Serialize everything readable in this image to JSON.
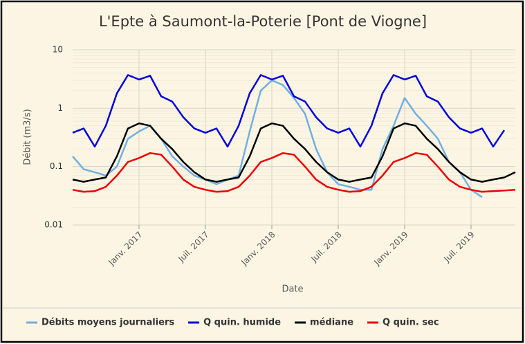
{
  "chart_data": {
    "type": "line",
    "title": "L'Epte à Saumont-la-Poterie [Pont de Viogne]",
    "x_label": "Date",
    "y_label": "Débit (m3/s)",
    "y_scale": "log",
    "grid": true,
    "legend": "bottom",
    "xlim": [
      "2016-07",
      "2019-11"
    ],
    "ylim": [
      0.01,
      10
    ],
    "yticks": [
      0.01,
      0.1,
      1,
      10
    ],
    "xticks": [
      {
        "value": "2017-01",
        "label": "Janv. 2017"
      },
      {
        "value": "2017-07",
        "label": "Juil. 2017"
      },
      {
        "value": "2018-01",
        "label": "Janv. 2018"
      },
      {
        "value": "2018-07",
        "label": "Juil. 2018"
      },
      {
        "value": "2019-01",
        "label": "Janv. 2019"
      },
      {
        "value": "2019-07",
        "label": "Juil. 2019"
      }
    ],
    "x": [
      "2016-07",
      "2016-08",
      "2016-09",
      "2016-10",
      "2016-11",
      "2016-12",
      "2017-01",
      "2017-02",
      "2017-03",
      "2017-04",
      "2017-05",
      "2017-06",
      "2017-07",
      "2017-08",
      "2017-09",
      "2017-10",
      "2017-11",
      "2017-12",
      "2018-01",
      "2018-02",
      "2018-03",
      "2018-04",
      "2018-05",
      "2018-06",
      "2018-07",
      "2018-08",
      "2018-09",
      "2018-10",
      "2018-11",
      "2018-12",
      "2019-01",
      "2019-02",
      "2019-03",
      "2019-04",
      "2019-05",
      "2019-06",
      "2019-07",
      "2019-08",
      "2019-09",
      "2019-10",
      "2019-11"
    ],
    "series": [
      {
        "name": "Débits moyens journaliers",
        "color": "#6fb0e2",
        "width": 2.5,
        "values": [
          0.15,
          0.09,
          0.08,
          0.07,
          0.1,
          0.3,
          0.4,
          0.5,
          0.3,
          0.15,
          0.1,
          0.07,
          0.06,
          0.05,
          0.06,
          0.07,
          0.4,
          2,
          3,
          2.5,
          1.5,
          0.8,
          0.2,
          0.08,
          0.05,
          0.045,
          0.04,
          0.04,
          0.2,
          0.5,
          1.5,
          0.8,
          0.5,
          0.3,
          0.12,
          0.08,
          0.04,
          0.03,
          null,
          null,
          null
        ]
      },
      {
        "name": "Q quin. humide",
        "color": "#0000dd",
        "width": 2.5,
        "values": [
          0.38,
          0.45,
          0.22,
          0.5,
          1.8,
          3.7,
          3.1,
          3.6,
          1.6,
          1.3,
          0.7,
          0.45,
          0.38,
          0.45,
          0.22,
          0.5,
          1.8,
          3.7,
          3.1,
          3.6,
          1.6,
          1.3,
          0.7,
          0.45,
          0.38,
          0.45,
          0.22,
          0.5,
          1.8,
          3.7,
          3.1,
          3.6,
          1.6,
          1.3,
          0.7,
          0.45,
          0.38,
          0.45,
          0.22,
          0.42,
          null
        ]
      },
      {
        "name": "médiane",
        "color": "#000000",
        "width": 2.5,
        "values": [
          0.06,
          0.055,
          0.06,
          0.065,
          0.15,
          0.45,
          0.55,
          0.5,
          0.3,
          0.2,
          0.12,
          0.08,
          0.06,
          0.055,
          0.06,
          0.065,
          0.15,
          0.45,
          0.55,
          0.5,
          0.3,
          0.2,
          0.12,
          0.08,
          0.06,
          0.055,
          0.06,
          0.065,
          0.15,
          0.45,
          0.55,
          0.5,
          0.3,
          0.2,
          0.12,
          0.08,
          0.06,
          0.055,
          0.06,
          0.065,
          0.08
        ]
      },
      {
        "name": "Q quin. sec",
        "color": "#ee0000",
        "width": 2.5,
        "values": [
          0.04,
          0.037,
          0.038,
          0.045,
          0.07,
          0.12,
          0.14,
          0.17,
          0.16,
          0.1,
          0.06,
          0.045,
          0.04,
          0.037,
          0.038,
          0.045,
          0.07,
          0.12,
          0.14,
          0.17,
          0.16,
          0.1,
          0.06,
          0.045,
          0.04,
          0.037,
          0.038,
          0.045,
          0.07,
          0.12,
          0.14,
          0.17,
          0.16,
          0.1,
          0.06,
          0.045,
          0.04,
          0.037,
          0.038,
          0.039,
          0.04
        ]
      }
    ]
  }
}
